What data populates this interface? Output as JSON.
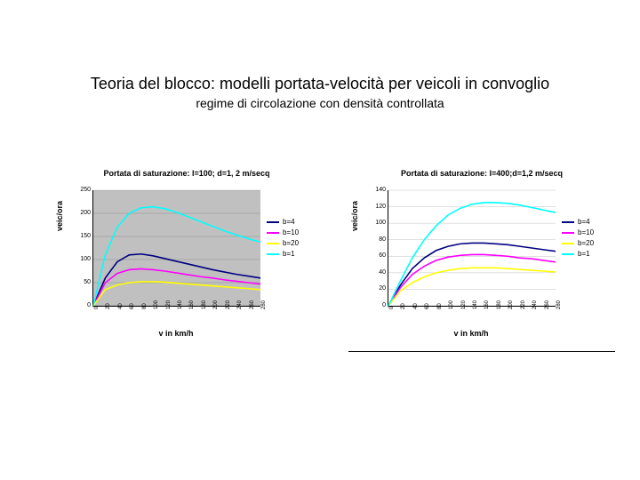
{
  "title": "Teoria del blocco: modelli portata-velocità per veicoli in convoglio",
  "subtitle": "regime di circolazione con densità controllata",
  "charts": [
    {
      "title": "Portata di saturazione: l=100; d=1, 2 m/secq",
      "ylabel": "veic/ora",
      "xlabel": "v in km/h",
      "plot_bg": "#c0c0c0",
      "ylim": [
        0,
        250
      ],
      "ytick_step": 50,
      "xlim": [
        0,
        280
      ],
      "xtick_step": 20,
      "series": [
        {
          "label": "b=4",
          "color": "#000080",
          "values": [
            0,
            60,
            95,
            110,
            112,
            108,
            102,
            96,
            90,
            84,
            78,
            73,
            68,
            64,
            60
          ]
        },
        {
          "label": "b=10",
          "color": "#ff00ff",
          "values": [
            0,
            50,
            70,
            78,
            80,
            78,
            75,
            71,
            67,
            63,
            60,
            56,
            53,
            50,
            47
          ]
        },
        {
          "label": "b=20",
          "color": "#ffff00",
          "values": [
            0,
            35,
            45,
            50,
            52,
            52,
            51,
            49,
            47,
            45,
            43,
            41,
            39,
            37,
            35
          ]
        },
        {
          "label": "b=1",
          "color": "#00ffff",
          "values": [
            0,
            110,
            170,
            200,
            212,
            214,
            210,
            202,
            192,
            182,
            172,
            162,
            153,
            145,
            138
          ]
        }
      ]
    },
    {
      "title": "Portata di saturazione: l=400;d=1,2 m/secq",
      "ylabel": "veic/ora",
      "xlabel": "v in km/h",
      "plot_bg": "#ffffff",
      "ylim": [
        0,
        140
      ],
      "ytick_step": 20,
      "xlim": [
        0,
        280
      ],
      "xtick_step": 20,
      "series": [
        {
          "label": "b=4",
          "color": "#000080",
          "values": [
            0,
            25,
            45,
            58,
            67,
            72,
            75,
            76,
            76,
            75,
            74,
            72,
            70,
            68,
            66
          ]
        },
        {
          "label": "b=10",
          "color": "#ff00ff",
          "values": [
            0,
            22,
            38,
            48,
            55,
            59,
            61,
            62,
            62,
            61,
            60,
            58,
            57,
            55,
            53
          ]
        },
        {
          "label": "b=20",
          "color": "#ffff00",
          "values": [
            0,
            18,
            28,
            35,
            40,
            43,
            45,
            46,
            46,
            46,
            45,
            44,
            43,
            42,
            41
          ]
        },
        {
          "label": "b=1",
          "color": "#00ffff",
          "values": [
            0,
            30,
            58,
            80,
            97,
            110,
            118,
            123,
            125,
            125,
            124,
            122,
            119,
            116,
            113
          ]
        }
      ]
    }
  ]
}
